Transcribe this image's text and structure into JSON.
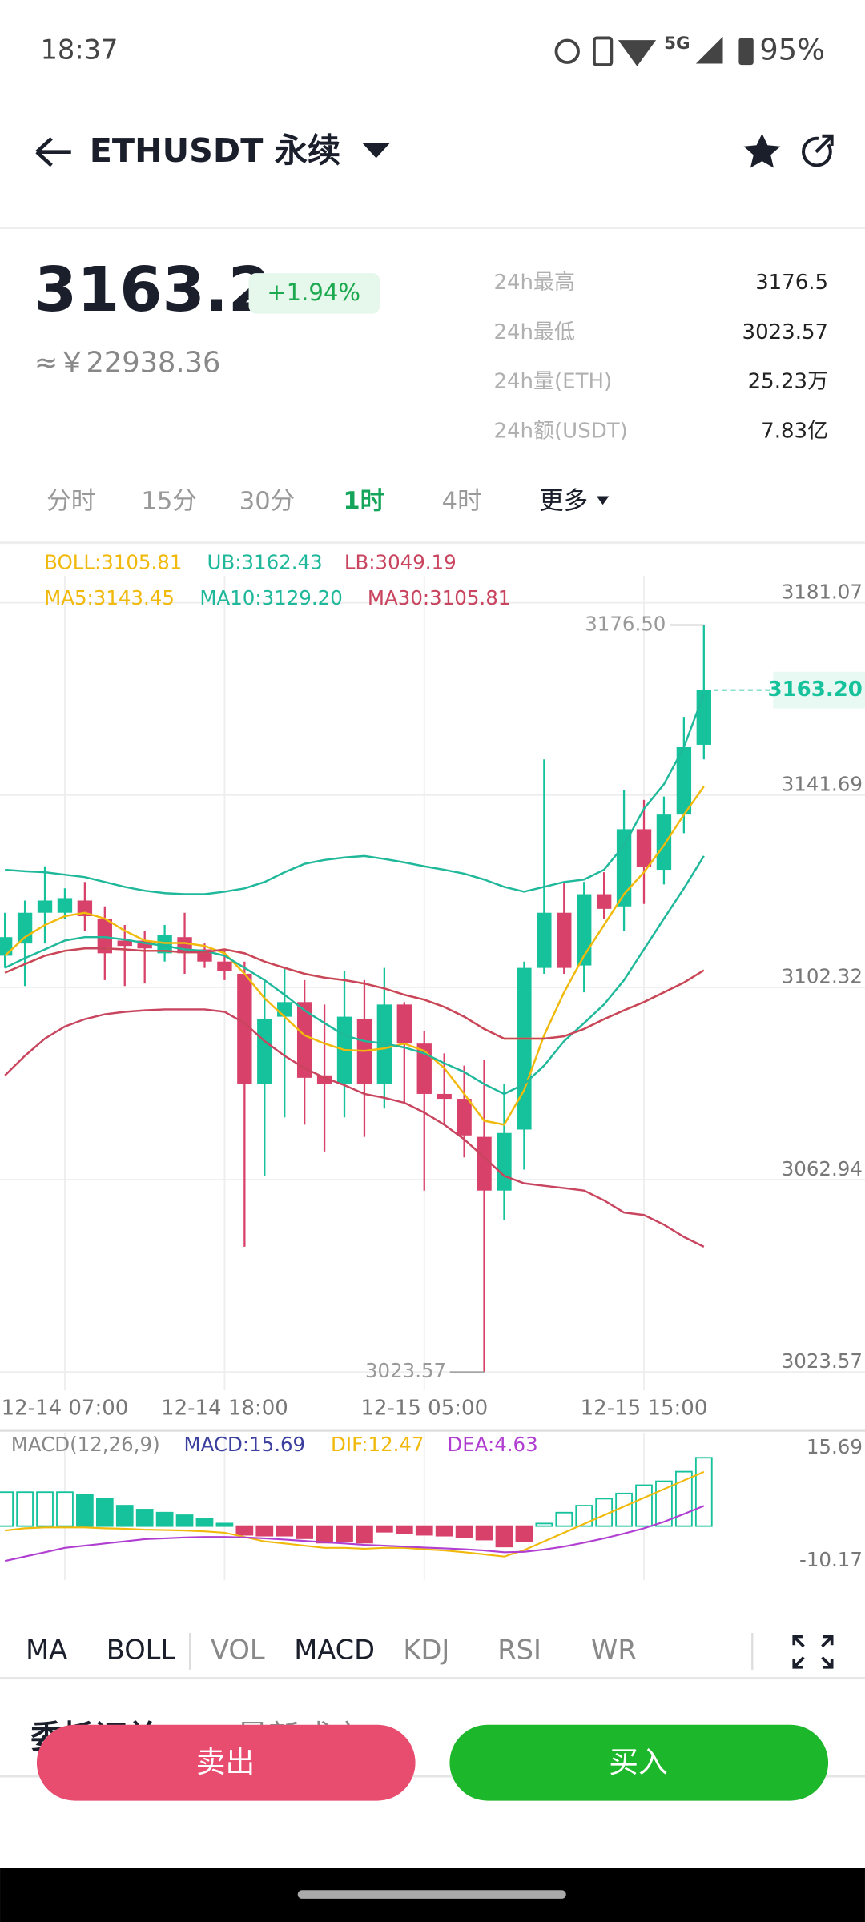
{
  "status_bar": {
    "time": "18:37",
    "network": "5G",
    "battery": "95%"
  },
  "header": {
    "symbol": "ETHUSDT 永续"
  },
  "ticker": {
    "price": "3163.2",
    "change": "+1.94%",
    "cny": "≈￥22938.36",
    "stats": [
      [
        "24h最高",
        "3176.5"
      ],
      [
        "24h最低",
        "3023.57"
      ],
      [
        "24h量(ETH)",
        "25.23万"
      ],
      [
        "24h额(USDT)",
        "7.83亿"
      ]
    ]
  },
  "intervals": [
    "分时",
    "15分",
    "30分",
    "1时",
    "4时",
    "更多"
  ],
  "indicator_tabs": [
    "MA",
    "BOLL",
    "VOL",
    "MACD",
    "KDJ",
    "RSI",
    "WR"
  ],
  "order_tabs": [
    "委托订单",
    "最新成交"
  ],
  "buttons": {
    "sell": "卖出",
    "buy": "买入"
  },
  "chart_data": [
    {
      "type": "candlestick",
      "categories": [
        null,
        null,
        null,
        "12-14 07:00",
        null,
        null,
        null,
        null,
        null,
        null,
        null,
        "12-14 18:00",
        null,
        null,
        null,
        null,
        null,
        null,
        null,
        null,
        null,
        "12-15 05:00",
        null,
        null,
        null,
        null,
        null,
        null,
        null,
        null,
        null,
        null,
        "12-15 15:00",
        null,
        null,
        null
      ],
      "open": [
        3108.8,
        3111.3,
        3117.6,
        3117.6,
        3120.1,
        3116.4,
        3111.9,
        3111.9,
        3109.3,
        3112.6,
        3110.1,
        3107.6,
        3105.1,
        3082.5,
        3096.3,
        3099.3,
        3084.3,
        3082.5,
        3095.8,
        3082.5,
        3098.8,
        3090.8,
        3080.5,
        3079.5,
        3071.7,
        3060.7,
        3073.2,
        3106.3,
        3117.6,
        3106.8,
        3121.4,
        3118.9,
        3134.7,
        3126.4,
        3137.7,
        3152.0
      ],
      "high": [
        3117.6,
        3120.1,
        3127.1,
        3122.6,
        3123.9,
        3118.9,
        3115.1,
        3113.9,
        3115.1,
        3117.6,
        3111.3,
        3110.1,
        3107.6,
        3103.8,
        3106.3,
        3103.8,
        3098.8,
        3105.6,
        3103.8,
        3106.3,
        3099.3,
        3093.3,
        3088.8,
        3086.3,
        3087.5,
        3082.5,
        3107.6,
        3149.0,
        3123.9,
        3123.9,
        3125.9,
        3142.7,
        3140.7,
        3141.4,
        3157.7,
        3176.5
      ],
      "low": [
        3106.3,
        3102.6,
        3111.3,
        3116.4,
        3113.9,
        3103.8,
        3102.6,
        3103.1,
        3107.6,
        3105.1,
        3106.3,
        3103.8,
        3049.2,
        3063.7,
        3075.7,
        3074.2,
        3068.7,
        3075.7,
        3071.7,
        3077.5,
        3078.7,
        3060.7,
        3074.2,
        3067.5,
        3023.57,
        3054.7,
        3065.0,
        3105.1,
        3105.1,
        3101.3,
        3116.4,
        3113.9,
        3119.4,
        3123.4,
        3133.9,
        3149.0
      ],
      "close": [
        3112.6,
        3117.6,
        3120.1,
        3120.6,
        3116.9,
        3109.3,
        3110.8,
        3110.3,
        3113.1,
        3109.3,
        3107.6,
        3105.6,
        3082.5,
        3095.8,
        3099.3,
        3083.8,
        3082.5,
        3096.3,
        3082.5,
        3098.8,
        3090.8,
        3080.5,
        3079.5,
        3072.0,
        3060.7,
        3072.5,
        3106.3,
        3117.6,
        3106.3,
        3121.4,
        3118.4,
        3134.7,
        3126.9,
        3137.7,
        3151.5,
        3163.2
      ],
      "up_color": "#16c29b",
      "down_color": "#d8416a",
      "series": [
        {
          "name": "BOLL:3105.81",
          "color": "#f0b90b",
          "values": [
            3105.3,
            3107.1,
            3108.8,
            3109.8,
            3110.3,
            3110.3,
            3110.1,
            3109.8,
            3109.8,
            3109.5,
            3109.5,
            3110.1,
            3109.3,
            3107.6,
            3106.3,
            3105.1,
            3104.3,
            3103.8,
            3103.1,
            3102.1,
            3100.8,
            3099.8,
            3098.3,
            3096.3,
            3093.8,
            3091.8,
            3091.8,
            3091.8,
            3092.3,
            3093.8,
            3095.8,
            3097.6,
            3099.3,
            3101.3,
            3103.3,
            3105.81
          ]
        },
        {
          "name": "UB:3162.43",
          "color": "#1fb89a",
          "values": [
            3126.4,
            3126.1,
            3125.9,
            3125.4,
            3124.9,
            3123.9,
            3122.9,
            3122.1,
            3121.6,
            3121.4,
            3121.4,
            3121.9,
            3122.6,
            3123.9,
            3125.9,
            3127.6,
            3128.4,
            3128.9,
            3129.2,
            3128.6,
            3127.9,
            3127.1,
            3126.4,
            3125.6,
            3124.4,
            3122.9,
            3121.9,
            3122.9,
            3123.9,
            3124.4,
            3126.4,
            3131.4,
            3138.9,
            3143.9,
            3151.5,
            3162.43
          ]
        },
        {
          "name": "LB:3049.19",
          "color": "#c9445e",
          "values": [
            3084.3,
            3088.3,
            3091.8,
            3094.3,
            3095.8,
            3096.8,
            3097.3,
            3097.6,
            3097.8,
            3097.8,
            3097.8,
            3097.3,
            3095.0,
            3091.3,
            3088.3,
            3085.8,
            3083.8,
            3082.3,
            3080.5,
            3079.7,
            3078.7,
            3076.7,
            3074.2,
            3071.2,
            3067.5,
            3063.7,
            3062.2,
            3061.7,
            3061.2,
            3060.7,
            3058.7,
            3056.2,
            3055.7,
            3053.7,
            3051.2,
            3049.19
          ]
        },
        {
          "name": "MA5:3143.45",
          "color": "#f0b90b",
          "values": [
            3108.8,
            3112.6,
            3115.1,
            3116.9,
            3117.6,
            3116.4,
            3113.9,
            3111.9,
            3111.4,
            3111.4,
            3110.8,
            3109.3,
            3105.1,
            3100.1,
            3096.3,
            3092.5,
            3090.8,
            3089.5,
            3089.3,
            3089.8,
            3090.8,
            3089.3,
            3085.8,
            3080.5,
            3075.0,
            3074.2,
            3081.3,
            3092.5,
            3101.3,
            3108.8,
            3115.1,
            3121.4,
            3125.9,
            3131.4,
            3137.7,
            3143.45
          ]
        },
        {
          "name": "MA10:3129.20",
          "color": "#1fb89a",
          "values": [
            3106.3,
            3108.3,
            3110.1,
            3111.9,
            3112.6,
            3112.6,
            3112.1,
            3111.4,
            3110.8,
            3110.1,
            3109.8,
            3108.8,
            3106.3,
            3103.8,
            3100.8,
            3097.6,
            3095.0,
            3092.5,
            3091.3,
            3090.8,
            3090.0,
            3088.8,
            3086.8,
            3085.0,
            3082.5,
            3080.5,
            3082.5,
            3086.3,
            3091.3,
            3095.0,
            3098.8,
            3103.8,
            3110.1,
            3116.4,
            3122.6,
            3129.2
          ]
        },
        {
          "name": "MA30:3105.81",
          "color": "#c9445e",
          "values": [
            3105.3,
            3107.1,
            3108.8,
            3109.8,
            3110.3,
            3110.3,
            3110.1,
            3109.8,
            3109.8,
            3109.5,
            3109.5,
            3110.1,
            3109.3,
            3107.6,
            3106.3,
            3105.1,
            3104.3,
            3103.8,
            3103.1,
            3102.1,
            3100.8,
            3099.8,
            3098.3,
            3096.3,
            3093.8,
            3091.8,
            3091.8,
            3091.8,
            3092.3,
            3093.8,
            3095.8,
            3097.6,
            3099.3,
            3101.3,
            3103.3,
            3105.81
          ]
        }
      ],
      "ylim": [
        3019.8,
        3186.6
      ],
      "yticks": [
        3181.07,
        3141.69,
        3102.32,
        3062.94,
        3023.57
      ],
      "grid": true,
      "max_label": {
        "value": 3176.5,
        "label": "3176.50"
      },
      "min_label": 3023.57,
      "last_label": {
        "value": 3163.2,
        "label": "3163.20"
      }
    },
    {
      "type": "macd",
      "title": "MACD(12,26,9)",
      "up_color": "#16c29b",
      "down_color": "#d8416a",
      "series": [
        {
          "name": "MACD:15.69",
          "color": "#3b3f9e",
          "type": "bar",
          "values": [
            7.8,
            7.8,
            7.8,
            7.8,
            7.2,
            6.3,
            4.7,
            3.8,
            3.1,
            2.5,
            1.6,
            0.6,
            -2.0,
            -2.2,
            -2.2,
            -2.8,
            -3.8,
            -3.4,
            -3.8,
            -1.3,
            -1.6,
            -2.0,
            -2.2,
            -2.5,
            -3.1,
            -4.7,
            -3.4,
            0.6,
            3.1,
            4.7,
            6.3,
            7.5,
            9.4,
            10.3,
            12.5,
            15.69
          ]
        },
        {
          "name": "DIF:12.47",
          "color": "#f0b90b",
          "type": "line",
          "values": [
            -1,
            -0.5,
            -0.3,
            -0.3,
            -0.3,
            -0.5,
            -0.6,
            -0.8,
            -0.9,
            -1,
            -1.2,
            -1.5,
            -2.5,
            -3.5,
            -4,
            -4.5,
            -5,
            -5,
            -5.2,
            -5,
            -5,
            -5.3,
            -5.6,
            -6,
            -6.5,
            -7,
            -5.5,
            -3.5,
            -1.5,
            0.5,
            2.5,
            4.5,
            6.5,
            8.5,
            10.5,
            12.47
          ]
        },
        {
          "name": "DEA:4.63",
          "color": "#b03fd1",
          "type": "line",
          "values": [
            -8,
            -7,
            -6,
            -5,
            -4.5,
            -4,
            -3.5,
            -3,
            -2.8,
            -2.6,
            -2.5,
            -2.5,
            -2.6,
            -2.8,
            -3.1,
            -3.4,
            -3.7,
            -4,
            -4.3,
            -4.5,
            -4.7,
            -4.9,
            -5.1,
            -5.3,
            -5.6,
            -6,
            -5.9,
            -5.4,
            -4.7,
            -3.8,
            -2.8,
            -1.7,
            -0.5,
            1,
            2.8,
            4.63
          ]
        }
      ],
      "ylim": [
        -10.17,
        15.69
      ],
      "yticks": [
        15.69,
        -10.17
      ]
    }
  ]
}
